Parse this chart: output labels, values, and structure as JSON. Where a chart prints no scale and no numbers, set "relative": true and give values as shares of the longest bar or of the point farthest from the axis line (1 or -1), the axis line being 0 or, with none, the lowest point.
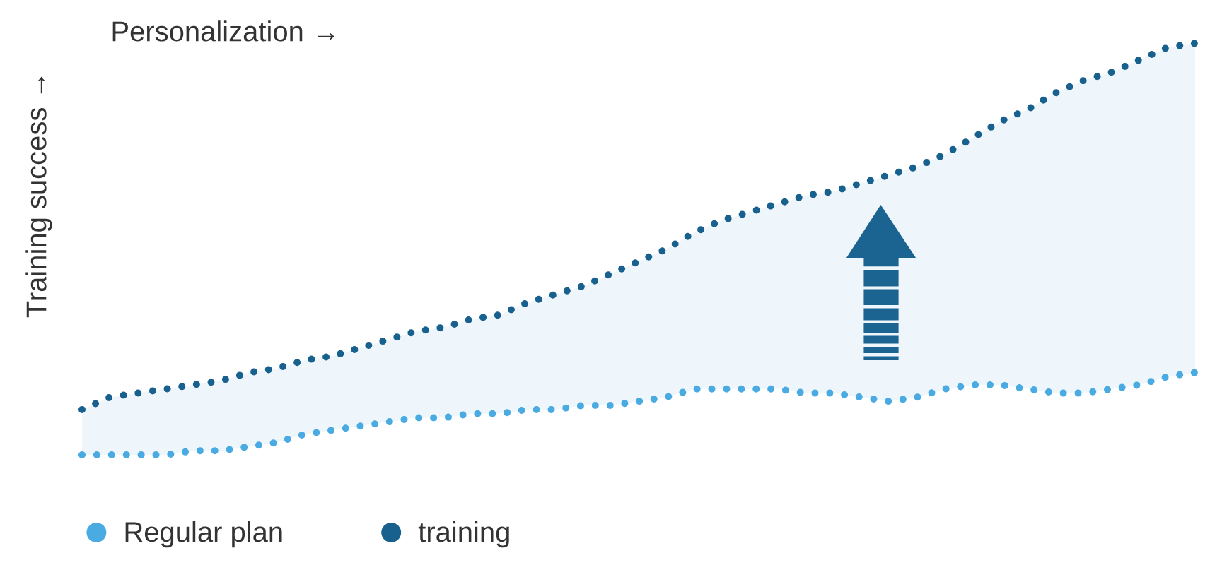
{
  "chart_data": {
    "type": "line",
    "xlabel": "Personalization →",
    "ylabel": "Training success →",
    "relative": true,
    "legend": "bottom left",
    "line_style": "dotted",
    "categories": [
      null,
      null,
      null,
      null,
      null,
      null,
      null,
      null,
      null,
      null,
      null,
      null,
      null,
      null,
      null,
      null,
      null,
      null,
      null,
      null,
      null,
      null,
      null,
      null,
      null,
      null,
      null,
      null,
      null,
      null,
      null,
      null,
      null,
      null,
      null,
      null,
      null,
      null,
      null,
      null,
      null
    ],
    "series": [
      {
        "name": "Regular plan",
        "color": "#4aabe2",
        "values": [
          0,
          0,
          0,
          0,
          0.01,
          0.01,
          0.02,
          0.03,
          0.05,
          0.06,
          0.07,
          0.08,
          0.09,
          0.09,
          0.1,
          0.1,
          0.11,
          0.11,
          0.12,
          0.12,
          0.13,
          0.14,
          0.16,
          0.16,
          0.16,
          0.16,
          0.15,
          0.15,
          0.14,
          0.13,
          0.14,
          0.16,
          0.17,
          0.17,
          0.16,
          0.15,
          0.15,
          0.16,
          0.17,
          0.19,
          0.2
        ]
      },
      {
        "name": "training",
        "color": "#18618e",
        "values": [
          0.11,
          0.14,
          0.15,
          0.16,
          0.17,
          0.18,
          0.2,
          0.21,
          0.23,
          0.24,
          0.26,
          0.28,
          0.3,
          0.31,
          0.33,
          0.34,
          0.37,
          0.39,
          0.41,
          0.44,
          0.47,
          0.5,
          0.54,
          0.57,
          0.59,
          0.61,
          0.63,
          0.64,
          0.66,
          0.68,
          0.7,
          0.73,
          0.77,
          0.81,
          0.84,
          0.88,
          0.91,
          0.93,
          0.96,
          0.99,
          1
        ],
        "lower": [
          0,
          0,
          0,
          0,
          0.01,
          0.01,
          0.02,
          0.03,
          0.05,
          0.06,
          0.07,
          0.08,
          0.09,
          0.09,
          0.1,
          0.1,
          0.11,
          0.11,
          0.12,
          0.12,
          0.13,
          0.14,
          0.16,
          0.16,
          0.16,
          0.16,
          0.15,
          0.15,
          0.14,
          0.13,
          0.14,
          0.16,
          0.17,
          0.17,
          0.16,
          0.15,
          0.15,
          0.16,
          0.17,
          0.19,
          0.2
        ],
        "upper": [
          0.11,
          0.14,
          0.15,
          0.16,
          0.17,
          0.18,
          0.2,
          0.21,
          0.23,
          0.24,
          0.26,
          0.28,
          0.3,
          0.31,
          0.33,
          0.34,
          0.37,
          0.39,
          0.41,
          0.44,
          0.47,
          0.5,
          0.54,
          0.57,
          0.59,
          0.61,
          0.63,
          0.64,
          0.66,
          0.68,
          0.7,
          0.73,
          0.77,
          0.81,
          0.84,
          0.88,
          0.91,
          0.93,
          0.96,
          0.99,
          1
        ]
      }
    ]
  }
}
